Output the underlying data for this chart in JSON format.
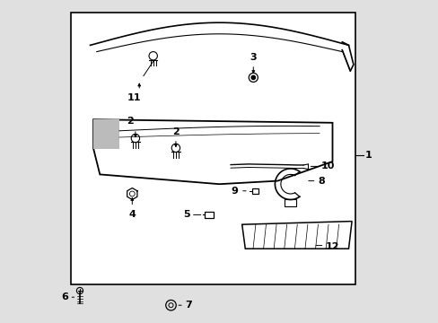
{
  "background_color": "#e0e0e0",
  "box_color": "#ffffff",
  "line_color": "#000000",
  "text_color": "#000000",
  "label_fontsize": 8,
  "bold_labels": true
}
